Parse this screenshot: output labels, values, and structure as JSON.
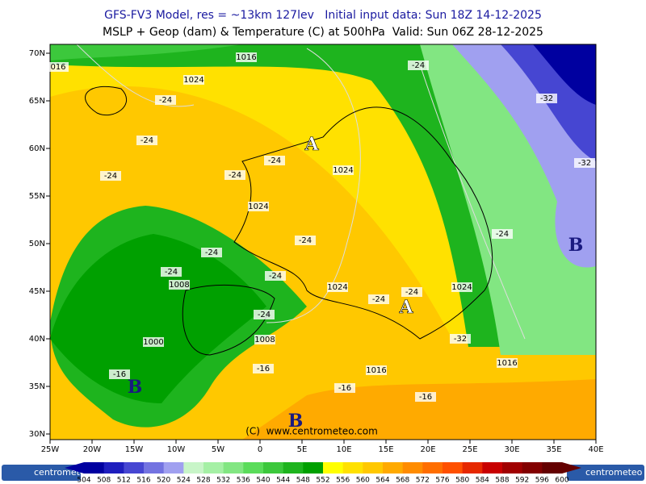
{
  "header": {
    "line1": "GFS-FV3 Model, res = ~13km 127lev   Initial input data: Sun 18Z 14-12-2025",
    "line2": "MSLP + Geop (dam) & Temperature (C) at 500hPa  Valid: Sun 06Z 28-12-2025"
  },
  "map": {
    "labels": [
      "1016",
      "016",
      "1024",
      "-24",
      "-24",
      "-24",
      "-24",
      "-24",
      "1024",
      "1024",
      "-24",
      "-24",
      "1008",
      "-24",
      "-24",
      "1024",
      "-24",
      "-24",
      "1024",
      "-24",
      "1000",
      "1008",
      "-16",
      "-16",
      "1016",
      "-16",
      "-16",
      "1016",
      "-32",
      "-24",
      "-32",
      "-32",
      "-24"
    ],
    "centers": [
      "A",
      "A",
      "B",
      "B",
      "B"
    ],
    "copyright": "(C)  www.centrometeo.com",
    "lat_labels": [
      "70N",
      "65N",
      "60N",
      "55N",
      "50N",
      "45N",
      "40N",
      "35N",
      "30N"
    ],
    "lon_labels": [
      "25W",
      "20W",
      "15W",
      "10W",
      "5W",
      "0",
      "5E",
      "10E",
      "15E",
      "20E",
      "25E",
      "30E",
      "35E",
      "40E"
    ]
  },
  "colorbar": {
    "values": [
      504,
      508,
      512,
      516,
      520,
      524,
      528,
      532,
      536,
      540,
      544,
      548,
      552,
      556,
      560,
      564,
      568,
      572,
      576,
      580,
      584,
      588,
      592,
      596,
      600
    ],
    "colors": [
      "#0000a0",
      "#1e1ebe",
      "#4646d2",
      "#7373e1",
      "#a0a0f0",
      "#c8f5c8",
      "#a5f0a5",
      "#82e682",
      "#5adc5a",
      "#3cc83c",
      "#1eb41e",
      "#00a000",
      "#ffff00",
      "#ffe100",
      "#ffc800",
      "#ffaa00",
      "#ff8c00",
      "#ff6e00",
      "#ff5000",
      "#e62800",
      "#c80000",
      "#a00000",
      "#820000",
      "#640000"
    ],
    "logo": "centrometeo"
  }
}
